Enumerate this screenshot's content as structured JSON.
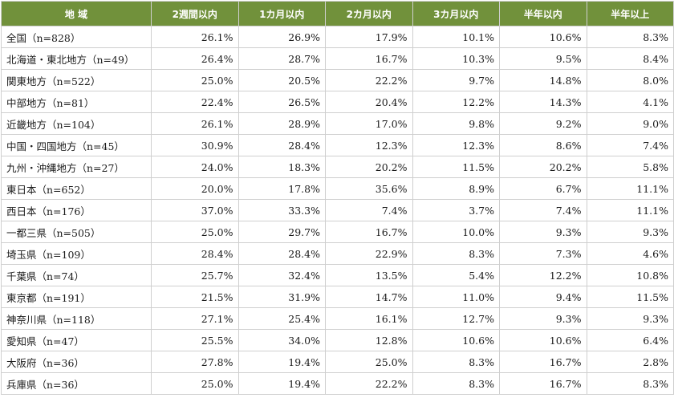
{
  "table": {
    "headers": [
      "地 域",
      "2週間以内",
      "1カ月以内",
      "2カ月以内",
      "3カ月以内",
      "半年以内",
      "半年以上"
    ],
    "rows": [
      [
        "全国（n=828）",
        "26.1%",
        "26.9%",
        "17.9%",
        "10.1%",
        "10.6%",
        "8.3%"
      ],
      [
        "北海道・東北地方（n=49）",
        "26.4%",
        "28.7%",
        "16.7%",
        "10.3%",
        "9.5%",
        "8.4%"
      ],
      [
        "関東地方（n=522）",
        "25.0%",
        "20.5%",
        "22.2%",
        "9.7%",
        "14.8%",
        "8.0%"
      ],
      [
        "中部地方（n=81）",
        "22.4%",
        "26.5%",
        "20.4%",
        "12.2%",
        "14.3%",
        "4.1%"
      ],
      [
        "近畿地方（n=104）",
        "26.1%",
        "28.9%",
        "17.0%",
        "9.8%",
        "9.2%",
        "9.0%"
      ],
      [
        "中国・四国地方（n=45）",
        "30.9%",
        "28.4%",
        "12.3%",
        "12.3%",
        "8.6%",
        "7.4%"
      ],
      [
        "九州・沖縄地方（n=27）",
        "24.0%",
        "18.3%",
        "20.2%",
        "11.5%",
        "20.2%",
        "5.8%"
      ],
      [
        "東日本（n=652）",
        "20.0%",
        "17.8%",
        "35.6%",
        "8.9%",
        "6.7%",
        "11.1%"
      ],
      [
        "西日本（n=176）",
        "37.0%",
        "33.3%",
        "7.4%",
        "3.7%",
        "7.4%",
        "11.1%"
      ],
      [
        "一都三県（n=505）",
        "25.0%",
        "29.7%",
        "16.7%",
        "10.0%",
        "9.3%",
        "9.3%"
      ],
      [
        "埼玉県（n=109）",
        "28.4%",
        "28.4%",
        "22.9%",
        "8.3%",
        "7.3%",
        "4.6%"
      ],
      [
        "千葉県（n=74）",
        "25.7%",
        "32.4%",
        "13.5%",
        "5.4%",
        "12.2%",
        "10.8%"
      ],
      [
        "東京都（n=191）",
        "21.5%",
        "31.9%",
        "14.7%",
        "11.0%",
        "9.4%",
        "11.5%"
      ],
      [
        "神奈川県（n=118）",
        "27.1%",
        "25.4%",
        "16.1%",
        "12.7%",
        "9.3%",
        "9.3%"
      ],
      [
        "愛知県（n=47）",
        "25.5%",
        "34.0%",
        "12.8%",
        "10.6%",
        "10.6%",
        "6.4%"
      ],
      [
        "大阪府（n=36）",
        "27.8%",
        "19.4%",
        "25.0%",
        "8.3%",
        "16.7%",
        "2.8%"
      ],
      [
        "兵庫県（n=36）",
        "25.0%",
        "19.4%",
        "22.2%",
        "8.3%",
        "16.7%",
        "8.3%"
      ]
    ]
  },
  "colors": {
    "header_bg": "#71913b",
    "header_text": "#ffffff",
    "border": "#cfcfcf"
  }
}
